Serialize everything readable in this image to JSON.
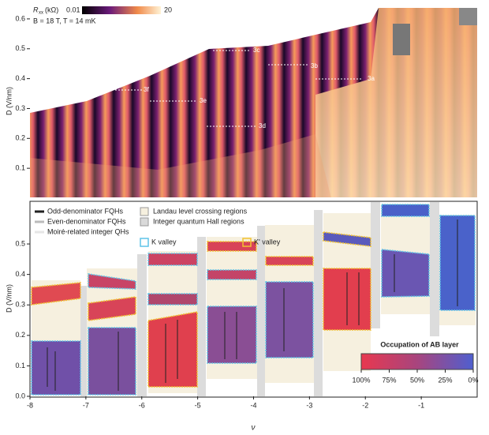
{
  "chart_data": [
    {
      "type": "heatmap",
      "colorbar_label": {
        "symbol": "R",
        "subscript": "xx",
        "unit": "(kΩ)"
      },
      "clim": [
        0.01,
        20
      ],
      "log_scale": true,
      "conditions": "B = 18 T, T = 14 mK",
      "ylabel": "D (V/nm)",
      "xlim": [
        -8,
        0
      ],
      "ylim": [
        0,
        0.65
      ],
      "yticks": [
        0.1,
        0.2,
        0.3,
        0.4,
        0.5,
        0.6
      ],
      "annotations": [
        "3a",
        "3b",
        "3c",
        "3d",
        "3e",
        "3f"
      ]
    },
    {
      "type": "region-map",
      "xlabel": "ν",
      "ylabel": "D (V/nm)",
      "xlim": [
        -8,
        0
      ],
      "ylim": [
        0,
        0.64
      ],
      "xticks": [
        -8,
        -7,
        -6,
        -5,
        -4,
        -3,
        -2,
        -1
      ],
      "yticks": [
        {
          "value": 0,
          "label": "0.0"
        },
        0.1,
        0.2,
        0.3,
        0.4,
        0.5
      ],
      "legend": [
        {
          "name": "Odd-denominator FQHs",
          "color": "#222222"
        },
        {
          "name": "Even-denominator FQHs",
          "color": "#bbbbbb"
        },
        {
          "name": "Moiré-related integer QHs",
          "color": "#e6e6e6"
        },
        {
          "name": "Landau level crossing regions",
          "color": "#f6f0df"
        },
        {
          "name": "Integer quantum Hall regions",
          "color": "#d9d9d9"
        },
        {
          "name": "K valley",
          "color": "#5ec3e8"
        },
        {
          "name": "K' valley",
          "color": "#f2c230"
        }
      ],
      "colorbar_title": "Occupation of AB layer",
      "colorbar_ticks": [
        {
          "value": 100,
          "label": "100%"
        },
        {
          "value": 75,
          "label": "75%"
        },
        {
          "value": 50,
          "label": "50%"
        },
        {
          "value": 25,
          "label": "25%"
        },
        {
          "value": 0,
          "label": "0%"
        }
      ],
      "colorbar_colors": [
        "#e8384f",
        "#a8457e",
        "#4f5fcf"
      ]
    }
  ]
}
